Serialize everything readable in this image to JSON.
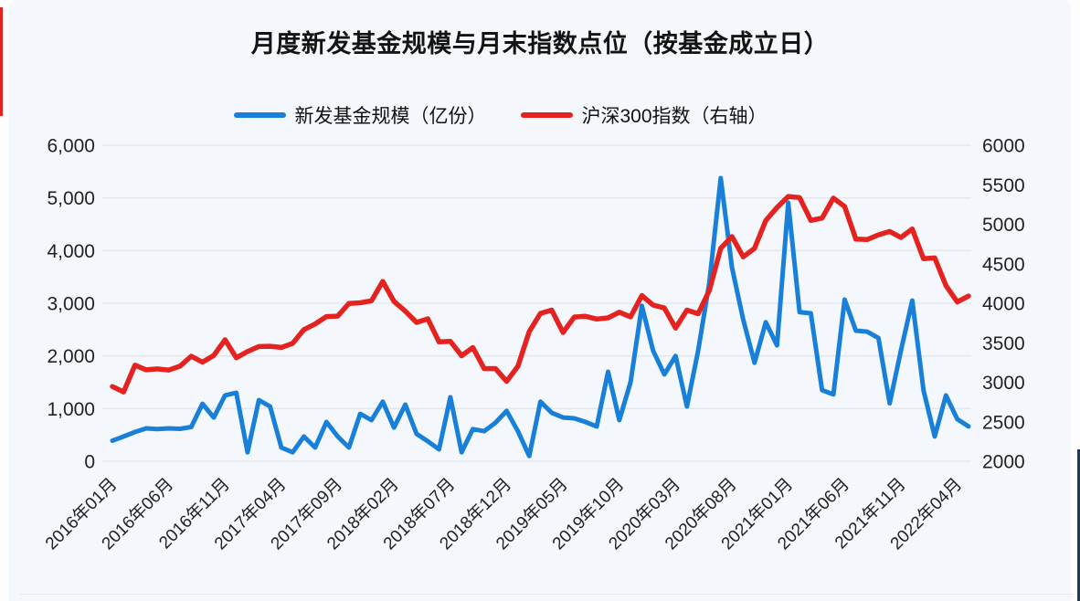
{
  "title": "月度新发基金规模与月末指数点位（按基金成立日）",
  "legend": {
    "items": [
      {
        "label": "新发基金规模（亿份）",
        "color": "#1880d8"
      },
      {
        "label": "沪深300指数（右轴）",
        "color": "#e42320"
      }
    ]
  },
  "chart_data": {
    "type": "line",
    "title": "月度新发基金规模与月末指数点位（按基金成立日）",
    "grid": "horizontal-only",
    "legend_position": "top-center",
    "left_axis": {
      "min": 0,
      "max": 6000,
      "step": 1000,
      "tick_labels": [
        "0",
        "1,000",
        "2,000",
        "3,000",
        "4,000",
        "5,000",
        "6,000"
      ]
    },
    "right_axis": {
      "min": 2000,
      "max": 6000,
      "step": 500,
      "tick_labels": [
        "2000",
        "2500",
        "3000",
        "3500",
        "4000",
        "4500",
        "5000",
        "5500",
        "6000"
      ]
    },
    "x_tick_every": 5,
    "x": [
      "2016年01月",
      "2016年02月",
      "2016年03月",
      "2016年04月",
      "2016年05月",
      "2016年06月",
      "2016年07月",
      "2016年08月",
      "2016年09月",
      "2016年10月",
      "2016年11月",
      "2016年12月",
      "2017年01月",
      "2017年02月",
      "2017年03月",
      "2017年04月",
      "2017年05月",
      "2017年06月",
      "2017年07月",
      "2017年08月",
      "2017年09月",
      "2017年10月",
      "2017年11月",
      "2017年12月",
      "2018年01月",
      "2018年02月",
      "2018年03月",
      "2018年04月",
      "2018年05月",
      "2018年06月",
      "2018年07月",
      "2018年08月",
      "2018年09月",
      "2018年10月",
      "2018年11月",
      "2018年12月",
      "2019年01月",
      "2019年02月",
      "2019年03月",
      "2019年04月",
      "2019年05月",
      "2019年06月",
      "2019年07月",
      "2019年08月",
      "2019年09月",
      "2019年10月",
      "2019年11月",
      "2019年12月",
      "2020年01月",
      "2020年02月",
      "2020年03月",
      "2020年04月",
      "2020年05月",
      "2020年06月",
      "2020年07月",
      "2020年08月",
      "2020年09月",
      "2020年10月",
      "2020年11月",
      "2020年12月",
      "2021年01月",
      "2021年02月",
      "2021年03月",
      "2021年04月",
      "2021年05月",
      "2021年06月",
      "2021年07月",
      "2021年08月",
      "2021年09月",
      "2021年10月",
      "2021年11月",
      "2021年12月",
      "2022年01月",
      "2022年02月",
      "2022年03月",
      "2022年04月",
      "2022年05月"
    ],
    "series": [
      {
        "name": "新发基金规模（亿份）",
        "axis": "left",
        "color": "#1880d8",
        "values": [
          390,
          470,
          555,
          625,
          610,
          625,
          615,
          650,
          1090,
          830,
          1250,
          1300,
          170,
          1160,
          1040,
          260,
          170,
          470,
          260,
          745,
          470,
          260,
          900,
          780,
          1130,
          640,
          1075,
          520,
          380,
          225,
          1215,
          170,
          610,
          570,
          730,
          955,
          570,
          100,
          1130,
          920,
          830,
          815,
          745,
          660,
          1700,
          780,
          1500,
          2950,
          2100,
          1650,
          2000,
          1040,
          2100,
          3400,
          5375,
          3680,
          2690,
          1870,
          2640,
          2200,
          4907,
          2830,
          2810,
          1350,
          1270,
          3070,
          2480,
          2460,
          2340,
          1100,
          2100,
          3050,
          1350,
          470,
          1250,
          800,
          660
        ]
      },
      {
        "name": "沪深300指数（右轴）",
        "axis": "right",
        "color": "#e42320",
        "values": [
          2946,
          2878,
          3216,
          3157,
          3169,
          3154,
          3204,
          3330,
          3254,
          3340,
          3538,
          3310,
          3388,
          3452,
          3456,
          3440,
          3492,
          3666,
          3737,
          3831,
          3837,
          3998,
          4006,
          4031,
          4276,
          4023,
          3899,
          3757,
          3802,
          3511,
          3518,
          3335,
          3439,
          3172,
          3173,
          3011,
          3202,
          3641,
          3872,
          3913,
          3630,
          3825,
          3835,
          3800,
          3815,
          3887,
          3828,
          4097,
          3977,
          3940,
          3686,
          3913,
          3867,
          4164,
          4696,
          4844,
          4587,
          4695,
          5047,
          5211,
          5352,
          5337,
          5048,
          5078,
          5331,
          5224,
          4811,
          4806,
          4866,
          4909,
          4832,
          4940,
          4564,
          4573,
          4223,
          4016,
          4091
        ]
      }
    ]
  }
}
